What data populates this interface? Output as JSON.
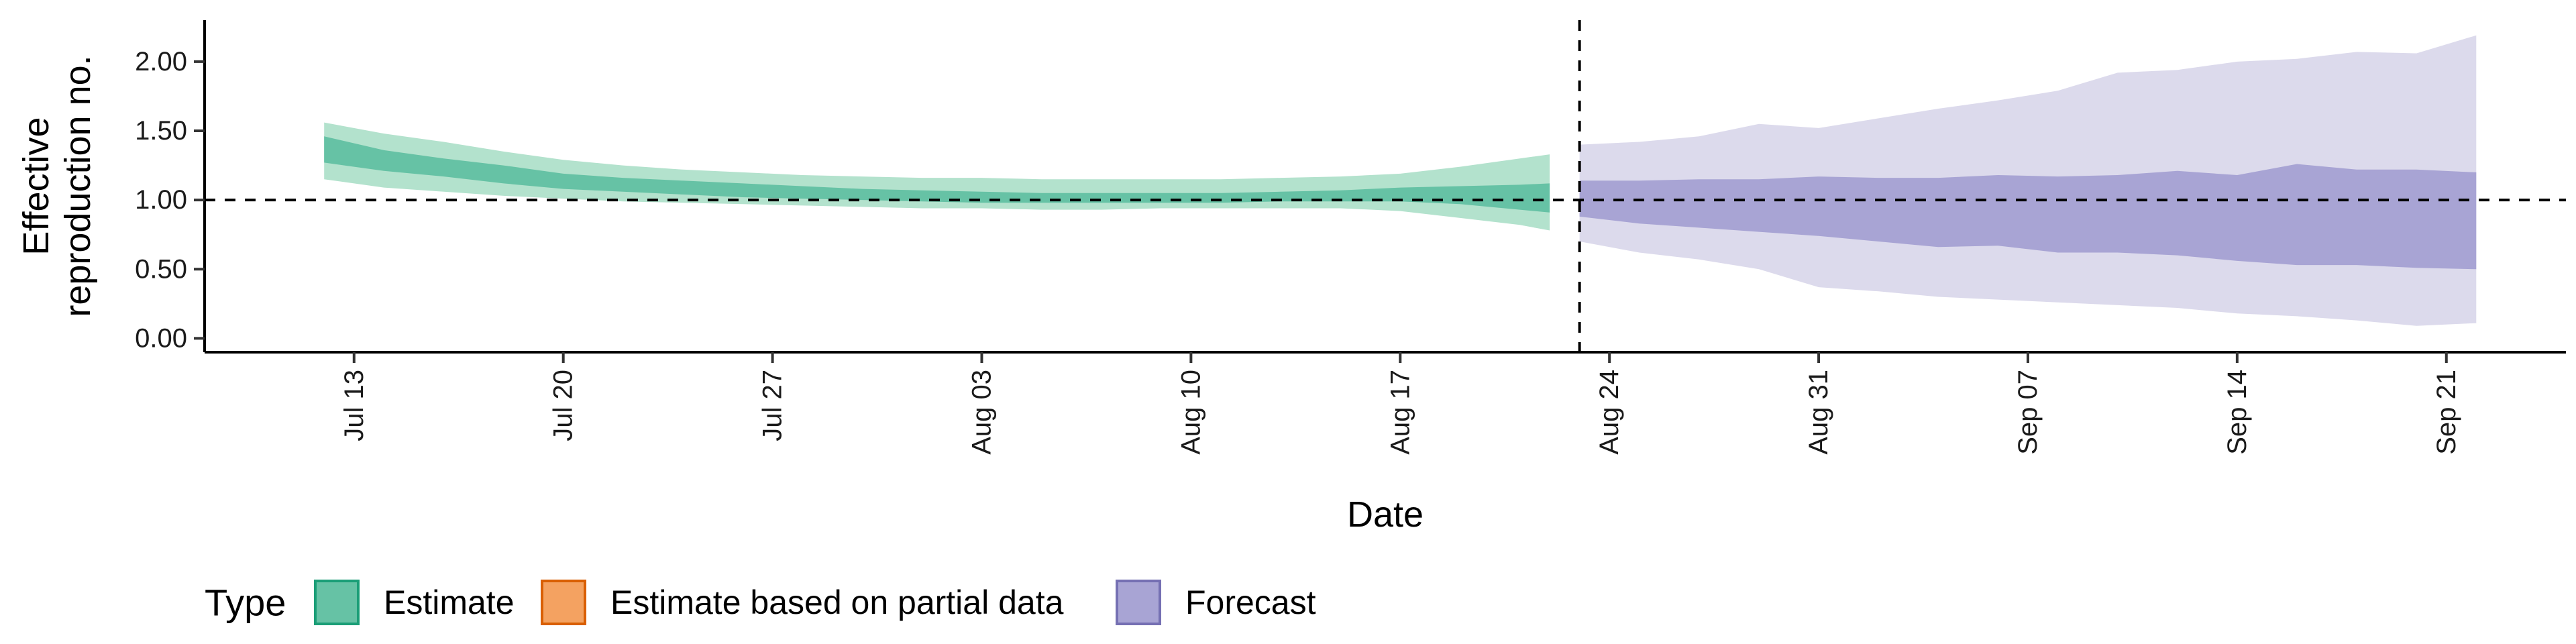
{
  "chart_data": {
    "type": "area",
    "xlabel": "Date",
    "ylabel_lines": [
      "Effective",
      "reproduction no."
    ],
    "x_tick_labels": [
      "Jul 13",
      "Jul 20",
      "Jul 27",
      "Aug 03",
      "Aug 10",
      "Aug 17",
      "Aug 24",
      "Aug 31",
      "Sep 07",
      "Sep 14",
      "Sep 21"
    ],
    "x_tick_dates": [
      "2020-07-13",
      "2020-07-20",
      "2020-07-27",
      "2020-08-03",
      "2020-08-10",
      "2020-08-17",
      "2020-08-24",
      "2020-08-31",
      "2020-09-07",
      "2020-09-14",
      "2020-09-21"
    ],
    "x_range": [
      "2020-07-08",
      "2020-09-25"
    ],
    "y_tick_values": [
      0,
      0.5,
      1,
      1.5,
      2
    ],
    "y_tick_labels": [
      "0.00",
      "0.50",
      "1.00",
      "1.50",
      "2.00"
    ],
    "ylim": [
      -0.1,
      2.3
    ],
    "reference_line_y": 1.0,
    "forecast_start_line": "2020-08-23",
    "legend": {
      "title": "Type",
      "position": "bottom",
      "items": [
        {
          "label": "Estimate",
          "fill": "#66c2a5",
          "stroke": "#1b9e77"
        },
        {
          "label": "Estimate based on partial data",
          "fill": "#f4a261",
          "stroke": "#d95f02"
        },
        {
          "label": "Forecast",
          "fill": "#a8a4d4",
          "stroke": "#7570b3"
        }
      ]
    },
    "series": [
      {
        "name": "Estimate",
        "outer_color": "#b3e2cd",
        "inner_color": "#66c2a5",
        "x": [
          "2020-07-12",
          "2020-07-14",
          "2020-07-16",
          "2020-07-18",
          "2020-07-20",
          "2020-07-22",
          "2020-07-24",
          "2020-07-26",
          "2020-07-28",
          "2020-07-30",
          "2020-08-01",
          "2020-08-03",
          "2020-08-05",
          "2020-08-07",
          "2020-08-09",
          "2020-08-11",
          "2020-08-13",
          "2020-08-15",
          "2020-08-17",
          "2020-08-19",
          "2020-08-21",
          "2020-08-22"
        ],
        "outer_upper": [
          1.56,
          1.48,
          1.42,
          1.35,
          1.29,
          1.25,
          1.22,
          1.2,
          1.18,
          1.17,
          1.16,
          1.16,
          1.15,
          1.15,
          1.15,
          1.15,
          1.16,
          1.17,
          1.19,
          1.24,
          1.3,
          1.33
        ],
        "inner_upper": [
          1.46,
          1.36,
          1.3,
          1.25,
          1.19,
          1.16,
          1.14,
          1.12,
          1.1,
          1.08,
          1.07,
          1.06,
          1.05,
          1.05,
          1.05,
          1.05,
          1.06,
          1.07,
          1.09,
          1.1,
          1.11,
          1.12
        ],
        "inner_lower": [
          1.27,
          1.21,
          1.17,
          1.12,
          1.08,
          1.06,
          1.04,
          1.02,
          1.01,
          1.0,
          0.99,
          0.98,
          0.98,
          0.98,
          0.98,
          0.98,
          0.99,
          0.99,
          0.99,
          0.97,
          0.93,
          0.91
        ],
        "outer_lower": [
          1.15,
          1.09,
          1.06,
          1.03,
          1.01,
          0.99,
          0.98,
          0.97,
          0.96,
          0.95,
          0.94,
          0.94,
          0.93,
          0.93,
          0.94,
          0.94,
          0.94,
          0.94,
          0.92,
          0.87,
          0.82,
          0.78
        ]
      },
      {
        "name": "Forecast",
        "outer_color": "#dcdaec",
        "inner_color": "#a8a4d4",
        "x": [
          "2020-08-23",
          "2020-08-25",
          "2020-08-27",
          "2020-08-29",
          "2020-08-31",
          "2020-09-02",
          "2020-09-04",
          "2020-09-06",
          "2020-09-08",
          "2020-09-10",
          "2020-09-12",
          "2020-09-14",
          "2020-09-16",
          "2020-09-18",
          "2020-09-20",
          "2020-09-22"
        ],
        "outer_upper": [
          1.4,
          1.42,
          1.46,
          1.55,
          1.52,
          1.59,
          1.66,
          1.72,
          1.79,
          1.92,
          1.94,
          2.0,
          2.02,
          2.07,
          2.06,
          2.19
        ],
        "inner_upper": [
          1.14,
          1.14,
          1.15,
          1.15,
          1.17,
          1.16,
          1.16,
          1.18,
          1.17,
          1.18,
          1.21,
          1.18,
          1.26,
          1.22,
          1.22,
          1.2
        ],
        "inner_lower": [
          0.88,
          0.83,
          0.8,
          0.77,
          0.74,
          0.7,
          0.66,
          0.67,
          0.62,
          0.62,
          0.6,
          0.56,
          0.53,
          0.53,
          0.51,
          0.5
        ],
        "outer_lower": [
          0.7,
          0.62,
          0.57,
          0.5,
          0.37,
          0.34,
          0.3,
          0.28,
          0.26,
          0.24,
          0.22,
          0.18,
          0.16,
          0.13,
          0.09,
          0.11
        ]
      }
    ]
  }
}
